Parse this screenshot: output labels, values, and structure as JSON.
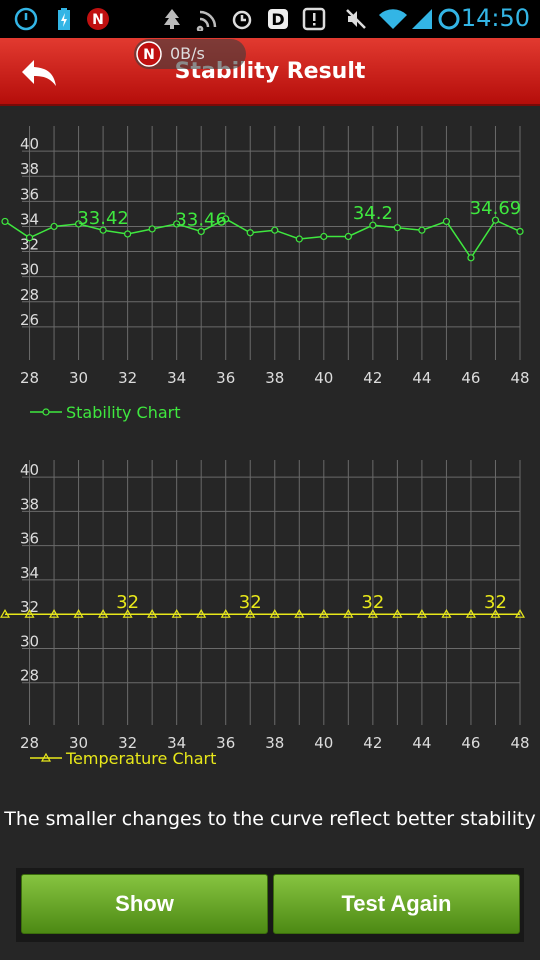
{
  "status_bar": {
    "time": "14:50",
    "icons": [
      "sync-icon",
      "battery-charging-icon",
      "app-n-icon",
      "tree-icon",
      "rss-icon",
      "alarm-icon",
      "d-app-icon",
      "alert-icon",
      "mute-icon",
      "wifi-icon",
      "signal-icon",
      "circle-icon"
    ]
  },
  "header": {
    "title": "Stability Result",
    "back_icon": "back-arrow-icon",
    "net_speed": "0B/s"
  },
  "colors": {
    "accent_red": "#cc1111",
    "stability_green": "#3fe83f",
    "temperature_yellow": "#e8e81a",
    "button_green": "#6aad2a"
  },
  "chart_data": [
    {
      "type": "line",
      "series": [
        {
          "name": "Stability Chart",
          "x": [
            27,
            28,
            29,
            30,
            31,
            32,
            33,
            34,
            35,
            36,
            37,
            38,
            39,
            40,
            41,
            42,
            43,
            44,
            45,
            46,
            47,
            48
          ],
          "values": [
            34.4,
            33.1,
            34.0,
            34.2,
            33.7,
            33.4,
            33.8,
            34.2,
            33.6,
            34.6,
            33.5,
            33.7,
            33.0,
            33.2,
            33.2,
            34.1,
            33.9,
            33.7,
            34.4,
            31.5,
            34.5,
            33.6
          ]
        }
      ],
      "annotations": [
        "33.42",
        "33.46",
        "34.2",
        "34.69"
      ],
      "xlim": [
        27,
        48
      ],
      "ylim": [
        24,
        42
      ],
      "xticks": [
        "28",
        "30",
        "32",
        "34",
        "36",
        "38",
        "40",
        "42",
        "44",
        "46",
        "48"
      ],
      "yticks": [
        "26",
        "28",
        "30",
        "32",
        "34",
        "36",
        "38",
        "40"
      ],
      "grid": true,
      "legend": "bottom-left"
    },
    {
      "type": "line",
      "series": [
        {
          "name": "Temperature Chart",
          "x": [
            27,
            28,
            29,
            30,
            31,
            32,
            33,
            34,
            35,
            36,
            37,
            38,
            39,
            40,
            41,
            42,
            43,
            44,
            45,
            46,
            47,
            48
          ],
          "values": [
            32,
            32,
            32,
            32,
            32,
            32,
            32,
            32,
            32,
            32,
            32,
            32,
            32,
            32,
            32,
            32,
            32,
            32,
            32,
            32,
            32,
            32
          ]
        }
      ],
      "annotations": [
        "32",
        "32",
        "32",
        "32"
      ],
      "xlim": [
        27,
        48
      ],
      "ylim": [
        26,
        41
      ],
      "xticks": [
        "28",
        "30",
        "32",
        "34",
        "36",
        "38",
        "40",
        "42",
        "44",
        "46",
        "48"
      ],
      "yticks": [
        "28",
        "30",
        "32",
        "34",
        "36",
        "38",
        "40"
      ],
      "grid": true,
      "legend": "bottom-left"
    }
  ],
  "footer": {
    "note": "The smaller changes to the curve reflect better stability",
    "show_label": "Show",
    "test_again_label": "Test Again"
  }
}
